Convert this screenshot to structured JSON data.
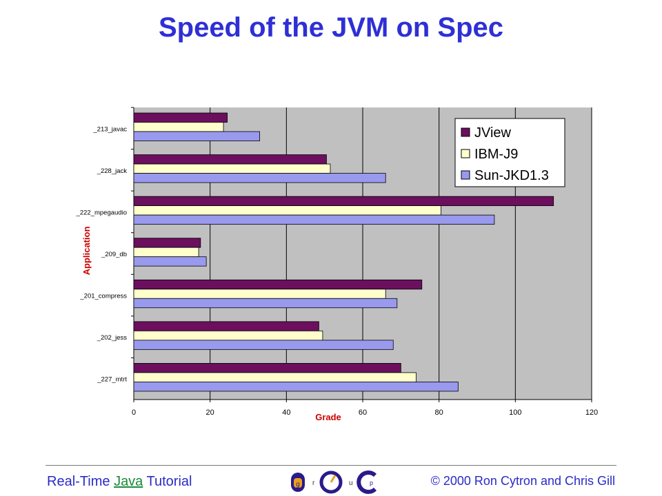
{
  "slide": {
    "title": "Speed of the JVM on Spec",
    "footer_left_pre": "Real-Time",
    "footer_left_link": "Java",
    "footer_left_post": "Tutorial",
    "footer_right": "© 2000 Ron Cytron and Chris Gill",
    "logo_letters": [
      "D",
      "r",
      "O",
      "u",
      "C"
    ],
    "logo_small": [
      "g",
      "p"
    ]
  },
  "chart_data": {
    "type": "bar",
    "orientation": "horizontal",
    "title": "",
    "xlabel": "Grade",
    "ylabel": "Application",
    "xlim": [
      0,
      120
    ],
    "xticks": [
      0,
      20,
      40,
      60,
      80,
      100,
      120
    ],
    "grid": true,
    "legend_position": "top-right",
    "categories": [
      "_213_javac",
      "_228_jack",
      "_222_mpegaudio",
      "_209_db",
      "_201_compress",
      "_202_jess",
      "_227_mtrt"
    ],
    "series": [
      {
        "name": "JView",
        "color": "#6b0f5e",
        "values": [
          24.5,
          50.5,
          110,
          17.5,
          75.5,
          48.5,
          70
        ]
      },
      {
        "name": "IBM-J9",
        "color": "#ffffcc",
        "values": [
          23.5,
          51.5,
          80.5,
          17,
          66,
          49.5,
          74
        ]
      },
      {
        "name": "Sun-JKD1.3",
        "color": "#9999ee",
        "values": [
          33,
          66,
          94.5,
          19,
          69,
          68,
          85
        ]
      }
    ],
    "colors": {
      "plot_bg": "#c0c0c0",
      "axis_label": "#cc0000"
    }
  }
}
